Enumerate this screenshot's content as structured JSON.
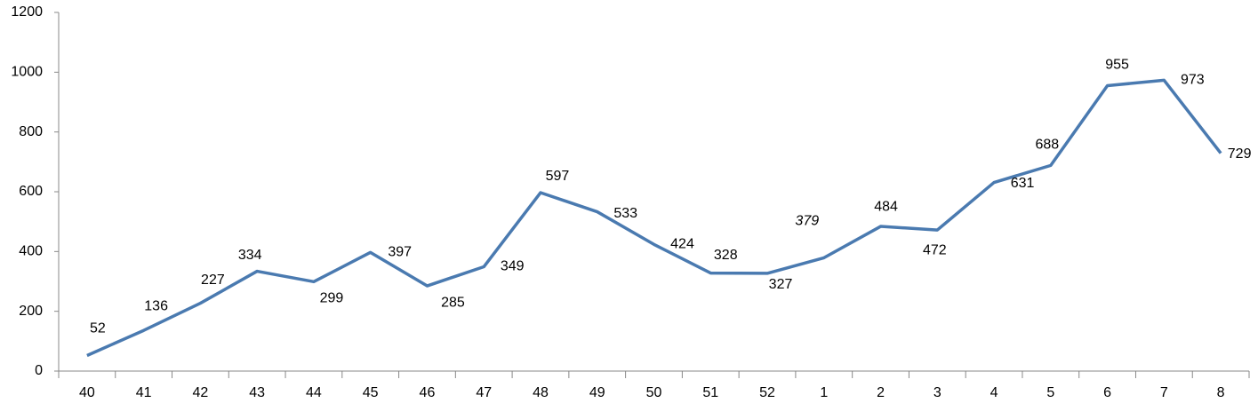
{
  "chart_data": {
    "type": "line",
    "categories": [
      "40",
      "41",
      "42",
      "43",
      "44",
      "45",
      "46",
      "47",
      "48",
      "49",
      "50",
      "51",
      "52",
      "1",
      "2",
      "3",
      "4",
      "5",
      "6",
      "7",
      "8"
    ],
    "values": [
      52,
      136,
      227,
      334,
      299,
      397,
      285,
      349,
      597,
      533,
      424,
      328,
      327,
      379,
      484,
      472,
      631,
      688,
      955,
      973,
      729
    ],
    "color": "#4a7ab0",
    "ylim": [
      0,
      1200
    ],
    "yticks": [
      0,
      200,
      400,
      600,
      800,
      1000,
      1200
    ],
    "grid": false
  }
}
